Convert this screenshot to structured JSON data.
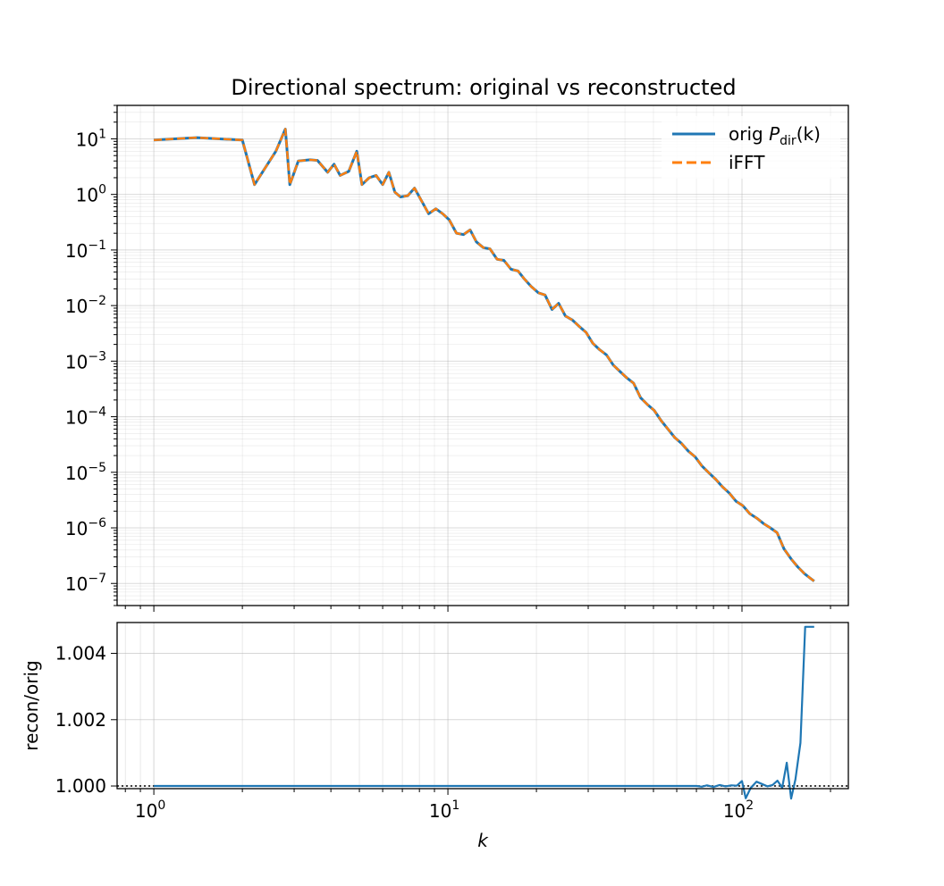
{
  "chart_data": [
    {
      "type": "line",
      "title": "Directional spectrum: original vs reconstructed",
      "xscale": "log",
      "yscale": "log",
      "xlim": [
        0.75,
        230
      ],
      "ylim": [
        4e-08,
        40
      ],
      "grid": true,
      "legend_position": "top-right",
      "y_ticks": [
        {
          "value": 10,
          "base": "10",
          "exp": "1"
        },
        {
          "value": 1,
          "base": "10",
          "exp": "0"
        },
        {
          "value": 0.1,
          "base": "10",
          "exp": "−1"
        },
        {
          "value": 0.01,
          "base": "10",
          "exp": "−2"
        },
        {
          "value": 0.001,
          "base": "10",
          "exp": "−3"
        },
        {
          "value": 0.0001,
          "base": "10",
          "exp": "−4"
        },
        {
          "value": 1e-05,
          "base": "10",
          "exp": "−5"
        },
        {
          "value": 1e-06,
          "base": "10",
          "exp": "−6"
        },
        {
          "value": 1e-07,
          "base": "10",
          "exp": "−7"
        }
      ],
      "series": [
        {
          "name": "orig P_dir(k)",
          "legend_main": "orig ",
          "legend_sym": "P",
          "legend_sub": "dir",
          "legend_tail": "(k)",
          "color": "#1f77b4",
          "style": "solid",
          "x": [
            1,
            1.4,
            2,
            2.2,
            2.6,
            2.8,
            2.9,
            3.1,
            3.4,
            3.6,
            3.9,
            4.1,
            4.3,
            4.6,
            4.9,
            5.1,
            5.4,
            5.7,
            6.0,
            6.3,
            6.6,
            6.9,
            7.3,
            7.7,
            8.1,
            8.6,
            9.1,
            9.6,
            10.1,
            10.7,
            11.3,
            11.9,
            12.5,
            13.2,
            13.9,
            14.7,
            15.5,
            16.4,
            17.3,
            18.2,
            19.2,
            20.3,
            21.4,
            22.6,
            23.8,
            25.1,
            26.5,
            28.0,
            29.5,
            31.1,
            32.8,
            34.6,
            36.5,
            38.5,
            40.6,
            42.8,
            45.2,
            47.7,
            50.3,
            53.1,
            56.0,
            59.1,
            62.3,
            65.7,
            69.3,
            73.1,
            77.1,
            81.4,
            85.8,
            90.6,
            95.5,
            100.8,
            106.3,
            112.2,
            118.3,
            124.8,
            131.7,
            138.9,
            146.6,
            154.6,
            163.1,
            172.1,
            176
          ],
          "y": [
            9.5,
            10.5,
            9.5,
            1.5,
            6.0,
            15.0,
            1.5,
            4.0,
            4.2,
            4.1,
            2.5,
            3.5,
            2.2,
            2.6,
            6.0,
            1.5,
            2.0,
            2.2,
            1.5,
            2.5,
            1.1,
            0.9,
            0.95,
            1.3,
            0.8,
            0.45,
            0.55,
            0.45,
            0.35,
            0.2,
            0.19,
            0.23,
            0.14,
            0.11,
            0.105,
            0.068,
            0.065,
            0.045,
            0.042,
            0.03,
            0.022,
            0.017,
            0.0155,
            0.0085,
            0.011,
            0.0065,
            0.0055,
            0.0042,
            0.0033,
            0.0021,
            0.0016,
            0.0013,
            0.00085,
            0.00065,
            0.0005,
            0.0004,
            0.00022,
            0.000165,
            0.00013,
            8.5e-05,
            6e-05,
            4.2e-05,
            3.3e-05,
            2.4e-05,
            1.9e-05,
            1.3e-05,
            9.8e-06,
            7.5e-06,
            5.5e-06,
            4.2e-06,
            3e-06,
            2.5e-06,
            1.8e-06,
            1.5e-06,
            1.2e-06,
            1e-06,
            8.2e-07,
            4.2e-07,
            2.8e-07,
            2e-07,
            1.5e-07,
            1.2e-07,
            1.1e-07
          ]
        },
        {
          "name": "iFFT",
          "legend_main": "iFFT",
          "color": "#ff7f0e",
          "style": "dashed",
          "same_as_series": 0
        }
      ]
    },
    {
      "type": "line",
      "xlabel": "k",
      "ylabel": "recon/orig",
      "xscale": "log",
      "xlim": [
        0.75,
        230
      ],
      "ylim": [
        0.99992,
        1.00493
      ],
      "grid": true,
      "reference_line": 1.0,
      "x_ticks": [
        {
          "value": 1,
          "base": "10",
          "exp": "0"
        },
        {
          "value": 10,
          "base": "10",
          "exp": "1"
        },
        {
          "value": 100,
          "base": "10",
          "exp": "2"
        }
      ],
      "y_ticks": [
        {
          "value": 1.0,
          "label": "1.000"
        },
        {
          "value": 1.002,
          "label": "1.002"
        },
        {
          "value": 1.004,
          "label": "1.004"
        }
      ],
      "series": [
        {
          "color": "#1f77b4",
          "x": [
            1,
            5,
            10,
            20,
            40,
            60,
            70,
            73,
            76,
            80,
            84,
            88,
            92,
            96,
            100,
            103,
            107,
            112,
            117,
            122,
            127,
            132,
            137,
            142,
            147,
            152,
            158,
            164,
            170,
            176
          ],
          "y": [
            1.0,
            1.0,
            1.0,
            1.0,
            1.0,
            1.0,
            1.0,
            0.99998,
            1.00002,
            0.99997,
            1.00003,
            0.99999,
            1.00002,
            1.00001,
            1.00015,
            0.99963,
            0.99994,
            1.00013,
            1.00006,
            0.99999,
            1.00003,
            1.00016,
            0.99995,
            1.0007,
            0.99962,
            1.0002,
            1.0013,
            1.0048,
            1.0048,
            1.0048
          ]
        }
      ]
    }
  ]
}
